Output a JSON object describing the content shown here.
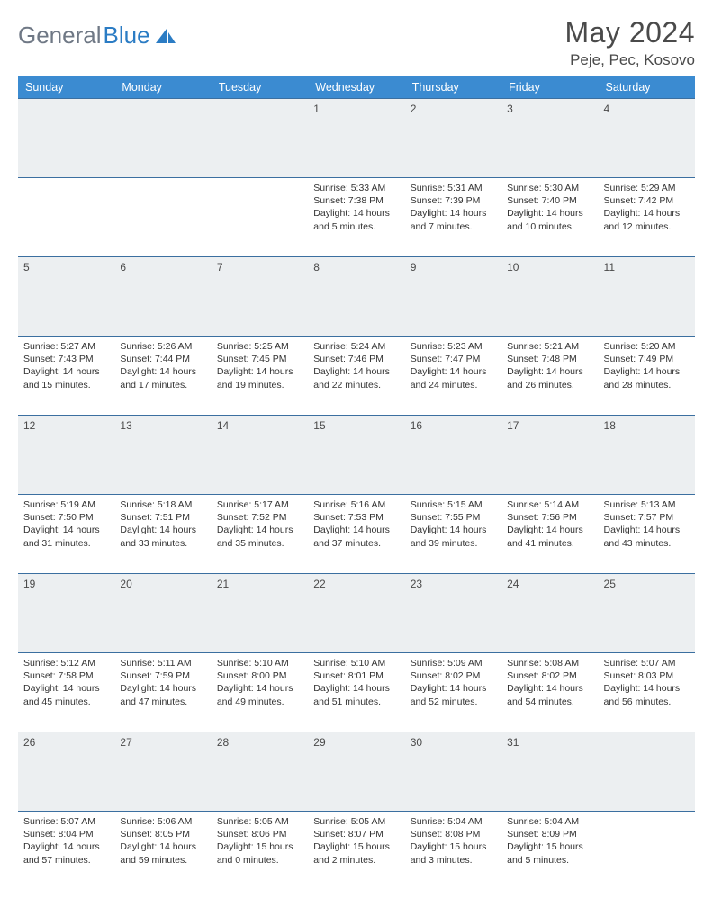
{
  "brand": {
    "part1": "General",
    "part2": "Blue"
  },
  "title": {
    "month": "May 2024",
    "location": "Peje, Pec, Kosovo"
  },
  "colors": {
    "header_bg": "#3b8bd1",
    "header_text": "#ffffff",
    "daynum_bg": "#eceff1",
    "border": "#7a9bb8",
    "brand_gray": "#6f7885",
    "brand_blue": "#2b7cc4",
    "text": "#333333"
  },
  "day_headers": [
    "Sunday",
    "Monday",
    "Tuesday",
    "Wednesday",
    "Thursday",
    "Friday",
    "Saturday"
  ],
  "weeks": [
    {
      "nums": [
        "",
        "",
        "",
        "1",
        "2",
        "3",
        "4"
      ],
      "cells": [
        "",
        "",
        "",
        "Sunrise: 5:33 AM\nSunset: 7:38 PM\nDaylight: 14 hours and 5 minutes.",
        "Sunrise: 5:31 AM\nSunset: 7:39 PM\nDaylight: 14 hours and 7 minutes.",
        "Sunrise: 5:30 AM\nSunset: 7:40 PM\nDaylight: 14 hours and 10 minutes.",
        "Sunrise: 5:29 AM\nSunset: 7:42 PM\nDaylight: 14 hours and 12 minutes."
      ]
    },
    {
      "nums": [
        "5",
        "6",
        "7",
        "8",
        "9",
        "10",
        "11"
      ],
      "cells": [
        "Sunrise: 5:27 AM\nSunset: 7:43 PM\nDaylight: 14 hours and 15 minutes.",
        "Sunrise: 5:26 AM\nSunset: 7:44 PM\nDaylight: 14 hours and 17 minutes.",
        "Sunrise: 5:25 AM\nSunset: 7:45 PM\nDaylight: 14 hours and 19 minutes.",
        "Sunrise: 5:24 AM\nSunset: 7:46 PM\nDaylight: 14 hours and 22 minutes.",
        "Sunrise: 5:23 AM\nSunset: 7:47 PM\nDaylight: 14 hours and 24 minutes.",
        "Sunrise: 5:21 AM\nSunset: 7:48 PM\nDaylight: 14 hours and 26 minutes.",
        "Sunrise: 5:20 AM\nSunset: 7:49 PM\nDaylight: 14 hours and 28 minutes."
      ]
    },
    {
      "nums": [
        "12",
        "13",
        "14",
        "15",
        "16",
        "17",
        "18"
      ],
      "cells": [
        "Sunrise: 5:19 AM\nSunset: 7:50 PM\nDaylight: 14 hours and 31 minutes.",
        "Sunrise: 5:18 AM\nSunset: 7:51 PM\nDaylight: 14 hours and 33 minutes.",
        "Sunrise: 5:17 AM\nSunset: 7:52 PM\nDaylight: 14 hours and 35 minutes.",
        "Sunrise: 5:16 AM\nSunset: 7:53 PM\nDaylight: 14 hours and 37 minutes.",
        "Sunrise: 5:15 AM\nSunset: 7:55 PM\nDaylight: 14 hours and 39 minutes.",
        "Sunrise: 5:14 AM\nSunset: 7:56 PM\nDaylight: 14 hours and 41 minutes.",
        "Sunrise: 5:13 AM\nSunset: 7:57 PM\nDaylight: 14 hours and 43 minutes."
      ]
    },
    {
      "nums": [
        "19",
        "20",
        "21",
        "22",
        "23",
        "24",
        "25"
      ],
      "cells": [
        "Sunrise: 5:12 AM\nSunset: 7:58 PM\nDaylight: 14 hours and 45 minutes.",
        "Sunrise: 5:11 AM\nSunset: 7:59 PM\nDaylight: 14 hours and 47 minutes.",
        "Sunrise: 5:10 AM\nSunset: 8:00 PM\nDaylight: 14 hours and 49 minutes.",
        "Sunrise: 5:10 AM\nSunset: 8:01 PM\nDaylight: 14 hours and 51 minutes.",
        "Sunrise: 5:09 AM\nSunset: 8:02 PM\nDaylight: 14 hours and 52 minutes.",
        "Sunrise: 5:08 AM\nSunset: 8:02 PM\nDaylight: 14 hours and 54 minutes.",
        "Sunrise: 5:07 AM\nSunset: 8:03 PM\nDaylight: 14 hours and 56 minutes."
      ]
    },
    {
      "nums": [
        "26",
        "27",
        "28",
        "29",
        "30",
        "31",
        ""
      ],
      "cells": [
        "Sunrise: 5:07 AM\nSunset: 8:04 PM\nDaylight: 14 hours and 57 minutes.",
        "Sunrise: 5:06 AM\nSunset: 8:05 PM\nDaylight: 14 hours and 59 minutes.",
        "Sunrise: 5:05 AM\nSunset: 8:06 PM\nDaylight: 15 hours and 0 minutes.",
        "Sunrise: 5:05 AM\nSunset: 8:07 PM\nDaylight: 15 hours and 2 minutes.",
        "Sunrise: 5:04 AM\nSunset: 8:08 PM\nDaylight: 15 hours and 3 minutes.",
        "Sunrise: 5:04 AM\nSunset: 8:09 PM\nDaylight: 15 hours and 5 minutes.",
        ""
      ]
    }
  ]
}
